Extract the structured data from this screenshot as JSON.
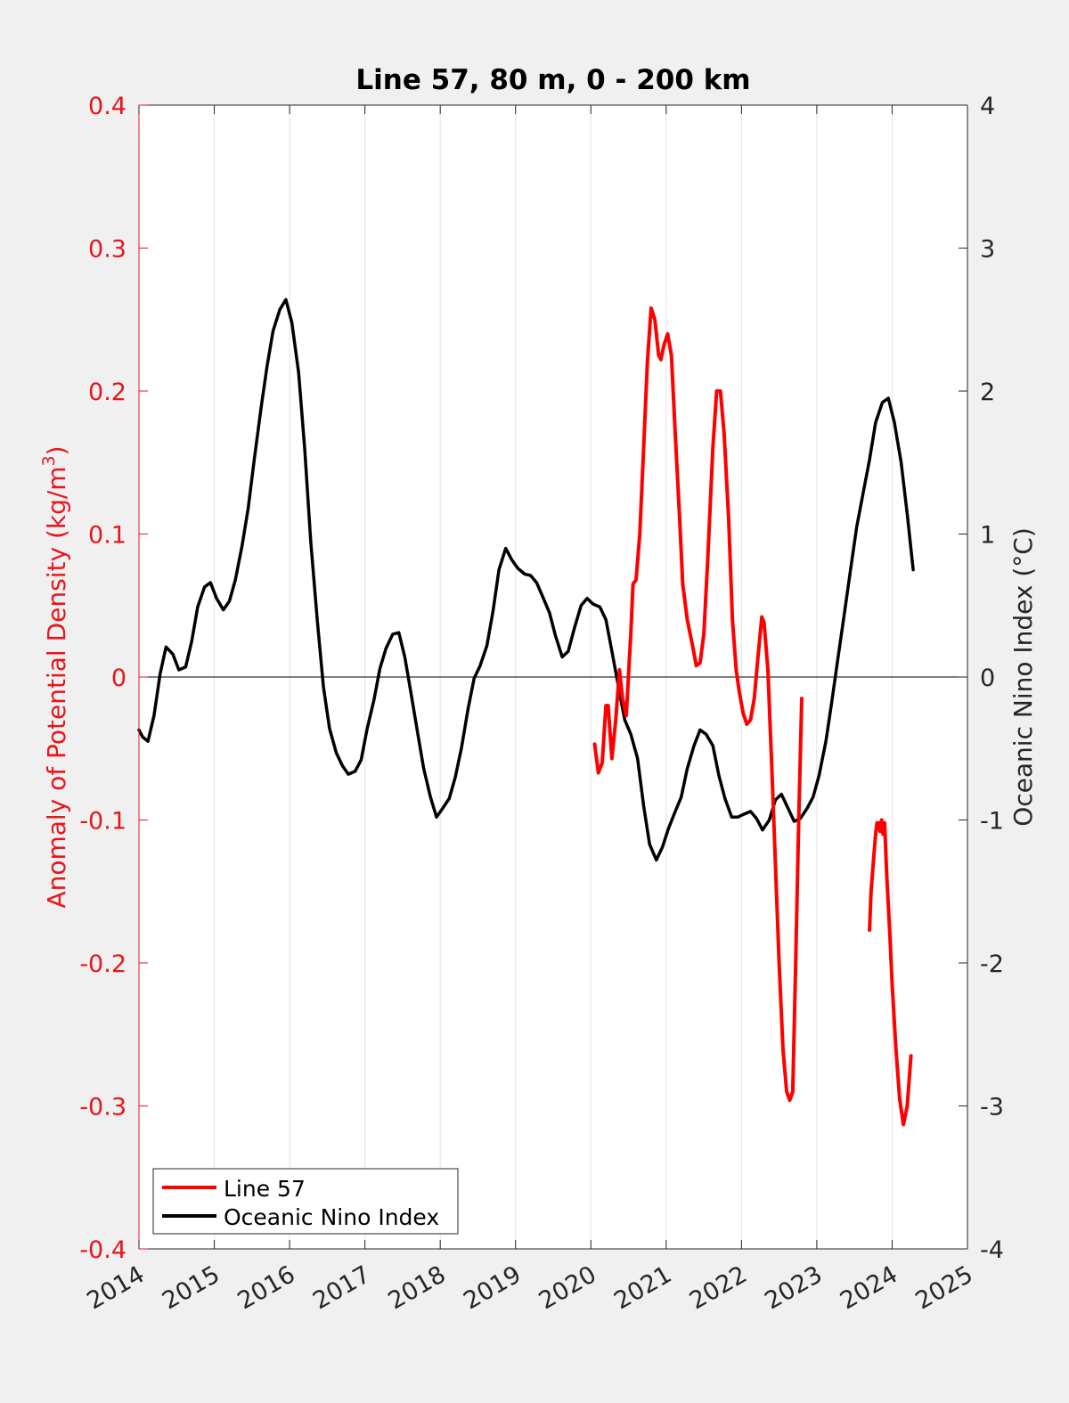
{
  "chart_data": {
    "type": "line",
    "title": "Line 57, 80 m, 0 - 200 km",
    "ylabel_left": "Anomaly of Potential Density (kg/m³)",
    "ylabel_left_parts": {
      "prefix": "Anomaly of Potential Density (kg/m",
      "sup": "3",
      "suffix": ")"
    },
    "ylabel_right": "Oceanic Nino Index (°C)",
    "xlim": [
      2014,
      2025
    ],
    "ylim_left": [
      -0.4,
      0.4
    ],
    "ylim_right": [
      -4,
      4
    ],
    "x_ticks": [
      "2014",
      "2015",
      "2016",
      "2017",
      "2018",
      "2019",
      "2020",
      "2021",
      "2022",
      "2023",
      "2024",
      "2025"
    ],
    "y_left_ticks": [
      "-0.4",
      "-0.3",
      "-0.2",
      "-0.1",
      "0",
      "0.1",
      "0.2",
      "0.3",
      "0.4"
    ],
    "y_right_ticks": [
      "-4",
      "-3",
      "-2",
      "-1",
      "0",
      "1",
      "2",
      "3",
      "4"
    ],
    "grid": "vertical",
    "legend_position": "bottom-left",
    "colors": {
      "left_axis": "#e8161b",
      "line57": "#ff0000",
      "oni": "#000000",
      "zero_line": "#000000"
    },
    "series": [
      {
        "name": "Line 57",
        "axis": "left",
        "segments": [
          [
            [
              2020.05,
              -0.047
            ],
            [
              2020.1,
              -0.067
            ],
            [
              2020.15,
              -0.06
            ],
            [
              2020.2,
              -0.02
            ],
            [
              2020.23,
              -0.02
            ],
            [
              2020.28,
              -0.057
            ],
            [
              2020.33,
              -0.03
            ],
            [
              2020.38,
              0.005
            ],
            [
              2020.42,
              -0.015
            ],
            [
              2020.47,
              -0.027
            ],
            [
              2020.53,
              0.03
            ],
            [
              2020.56,
              0.065
            ],
            [
              2020.6,
              0.068
            ],
            [
              2020.65,
              0.1
            ],
            [
              2020.7,
              0.16
            ],
            [
              2020.75,
              0.22
            ],
            [
              2020.8,
              0.258
            ],
            [
              2020.85,
              0.25
            ],
            [
              2020.9,
              0.225
            ],
            [
              2020.93,
              0.222
            ],
            [
              2020.97,
              0.232
            ],
            [
              2021.02,
              0.24
            ],
            [
              2021.07,
              0.225
            ],
            [
              2021.12,
              0.17
            ],
            [
              2021.18,
              0.11
            ],
            [
              2021.22,
              0.065
            ],
            [
              2021.28,
              0.04
            ],
            [
              2021.35,
              0.022
            ],
            [
              2021.4,
              0.008
            ],
            [
              2021.45,
              0.01
            ],
            [
              2021.5,
              0.03
            ],
            [
              2021.55,
              0.08
            ],
            [
              2021.62,
              0.16
            ],
            [
              2021.67,
              0.2
            ],
            [
              2021.72,
              0.2
            ],
            [
              2021.77,
              0.17
            ],
            [
              2021.83,
              0.11
            ],
            [
              2021.88,
              0.04
            ],
            [
              2021.93,
              0.005
            ],
            [
              2021.97,
              -0.01
            ],
            [
              2022.02,
              -0.025
            ],
            [
              2022.07,
              -0.033
            ],
            [
              2022.12,
              -0.03
            ],
            [
              2022.17,
              -0.015
            ],
            [
              2022.22,
              0.015
            ],
            [
              2022.27,
              0.042
            ],
            [
              2022.3,
              0.038
            ],
            [
              2022.35,
              0.005
            ],
            [
              2022.4,
              -0.06
            ],
            [
              2022.45,
              -0.13
            ],
            [
              2022.5,
              -0.2
            ],
            [
              2022.55,
              -0.26
            ],
            [
              2022.6,
              -0.29
            ],
            [
              2022.64,
              -0.296
            ],
            [
              2022.68,
              -0.29
            ],
            [
              2022.72,
              -0.2
            ],
            [
              2022.76,
              -0.1
            ],
            [
              2022.8,
              -0.015
            ]
          ],
          [
            [
              2023.7,
              -0.177
            ],
            [
              2023.72,
              -0.15
            ],
            [
              2023.75,
              -0.13
            ],
            [
              2023.78,
              -0.11
            ],
            [
              2023.8,
              -0.102
            ],
            [
              2023.82,
              -0.102
            ],
            [
              2023.84,
              -0.108
            ],
            [
              2023.86,
              -0.1
            ],
            [
              2023.88,
              -0.11
            ],
            [
              2023.9,
              -0.102
            ],
            [
              2023.93,
              -0.14
            ],
            [
              2023.97,
              -0.18
            ],
            [
              2024.0,
              -0.215
            ],
            [
              2024.05,
              -0.26
            ],
            [
              2024.1,
              -0.295
            ],
            [
              2024.15,
              -0.313
            ],
            [
              2024.2,
              -0.3
            ],
            [
              2024.25,
              -0.265
            ]
          ]
        ]
      },
      {
        "name": "Oceanic Nino Index",
        "axis": "right",
        "points": [
          [
            2014.0,
            -0.37
          ],
          [
            2014.05,
            -0.42
          ],
          [
            2014.12,
            -0.45
          ],
          [
            2014.2,
            -0.27
          ],
          [
            2014.28,
            0.02
          ],
          [
            2014.36,
            0.21
          ],
          [
            2014.45,
            0.16
          ],
          [
            2014.53,
            0.05
          ],
          [
            2014.62,
            0.07
          ],
          [
            2014.7,
            0.25
          ],
          [
            2014.78,
            0.49
          ],
          [
            2014.87,
            0.63
          ],
          [
            2014.95,
            0.66
          ],
          [
            2015.03,
            0.55
          ],
          [
            2015.12,
            0.47
          ],
          [
            2015.2,
            0.53
          ],
          [
            2015.28,
            0.68
          ],
          [
            2015.37,
            0.92
          ],
          [
            2015.45,
            1.18
          ],
          [
            2015.53,
            1.52
          ],
          [
            2015.62,
            1.88
          ],
          [
            2015.7,
            2.17
          ],
          [
            2015.78,
            2.42
          ],
          [
            2015.87,
            2.57
          ],
          [
            2015.95,
            2.64
          ],
          [
            2016.03,
            2.48
          ],
          [
            2016.12,
            2.13
          ],
          [
            2016.2,
            1.6
          ],
          [
            2016.28,
            0.95
          ],
          [
            2016.37,
            0.38
          ],
          [
            2016.45,
            -0.07
          ],
          [
            2016.53,
            -0.36
          ],
          [
            2016.62,
            -0.53
          ],
          [
            2016.7,
            -0.62
          ],
          [
            2016.78,
            -0.68
          ],
          [
            2016.87,
            -0.66
          ],
          [
            2016.95,
            -0.58
          ],
          [
            2017.03,
            -0.36
          ],
          [
            2017.12,
            -0.16
          ],
          [
            2017.2,
            0.06
          ],
          [
            2017.28,
            0.2
          ],
          [
            2017.37,
            0.3
          ],
          [
            2017.45,
            0.31
          ],
          [
            2017.53,
            0.14
          ],
          [
            2017.62,
            -0.14
          ],
          [
            2017.7,
            -0.39
          ],
          [
            2017.78,
            -0.64
          ],
          [
            2017.87,
            -0.84
          ],
          [
            2017.95,
            -0.98
          ],
          [
            2018.03,
            -0.92
          ],
          [
            2018.12,
            -0.85
          ],
          [
            2018.2,
            -0.7
          ],
          [
            2018.28,
            -0.5
          ],
          [
            2018.37,
            -0.22
          ],
          [
            2018.45,
            -0.01
          ],
          [
            2018.53,
            0.08
          ],
          [
            2018.62,
            0.22
          ],
          [
            2018.7,
            0.46
          ],
          [
            2018.78,
            0.75
          ],
          [
            2018.87,
            0.9
          ],
          [
            2018.95,
            0.82
          ],
          [
            2019.03,
            0.76
          ],
          [
            2019.12,
            0.72
          ],
          [
            2019.2,
            0.71
          ],
          [
            2019.28,
            0.66
          ],
          [
            2019.37,
            0.55
          ],
          [
            2019.45,
            0.45
          ],
          [
            2019.53,
            0.29
          ],
          [
            2019.62,
            0.14
          ],
          [
            2019.7,
            0.18
          ],
          [
            2019.78,
            0.34
          ],
          [
            2019.87,
            0.5
          ],
          [
            2019.95,
            0.55
          ],
          [
            2020.03,
            0.51
          ],
          [
            2020.12,
            0.49
          ],
          [
            2020.2,
            0.4
          ],
          [
            2020.28,
            0.18
          ],
          [
            2020.37,
            -0.08
          ],
          [
            2020.45,
            -0.3
          ],
          [
            2020.53,
            -0.4
          ],
          [
            2020.62,
            -0.57
          ],
          [
            2020.7,
            -0.9
          ],
          [
            2020.78,
            -1.17
          ],
          [
            2020.87,
            -1.28
          ],
          [
            2020.95,
            -1.19
          ],
          [
            2021.03,
            -1.06
          ],
          [
            2021.12,
            -0.94
          ],
          [
            2021.2,
            -0.84
          ],
          [
            2021.28,
            -0.64
          ],
          [
            2021.37,
            -0.48
          ],
          [
            2021.45,
            -0.37
          ],
          [
            2021.53,
            -0.4
          ],
          [
            2021.62,
            -0.48
          ],
          [
            2021.7,
            -0.69
          ],
          [
            2021.78,
            -0.85
          ],
          [
            2021.87,
            -0.98
          ],
          [
            2021.95,
            -0.98
          ],
          [
            2022.03,
            -0.96
          ],
          [
            2022.12,
            -0.94
          ],
          [
            2022.2,
            -0.99
          ],
          [
            2022.28,
            -1.07
          ],
          [
            2022.37,
            -1.0
          ],
          [
            2022.45,
            -0.86
          ],
          [
            2022.53,
            -0.82
          ],
          [
            2022.62,
            -0.92
          ],
          [
            2022.7,
            -1.01
          ],
          [
            2022.78,
            -0.99
          ],
          [
            2022.87,
            -0.92
          ],
          [
            2022.95,
            -0.84
          ],
          [
            2023.03,
            -0.69
          ],
          [
            2023.12,
            -0.45
          ],
          [
            2023.2,
            -0.17
          ],
          [
            2023.28,
            0.13
          ],
          [
            2023.37,
            0.46
          ],
          [
            2023.45,
            0.76
          ],
          [
            2023.53,
            1.05
          ],
          [
            2023.62,
            1.3
          ],
          [
            2023.7,
            1.52
          ],
          [
            2023.78,
            1.78
          ],
          [
            2023.87,
            1.92
          ],
          [
            2023.95,
            1.95
          ],
          [
            2024.03,
            1.78
          ],
          [
            2024.12,
            1.5
          ],
          [
            2024.2,
            1.14
          ],
          [
            2024.28,
            0.75
          ]
        ]
      }
    ],
    "legend": [
      {
        "label": "Line 57",
        "color": "#ff0000"
      },
      {
        "label": "Oceanic Nino Index",
        "color": "#000000"
      }
    ]
  }
}
